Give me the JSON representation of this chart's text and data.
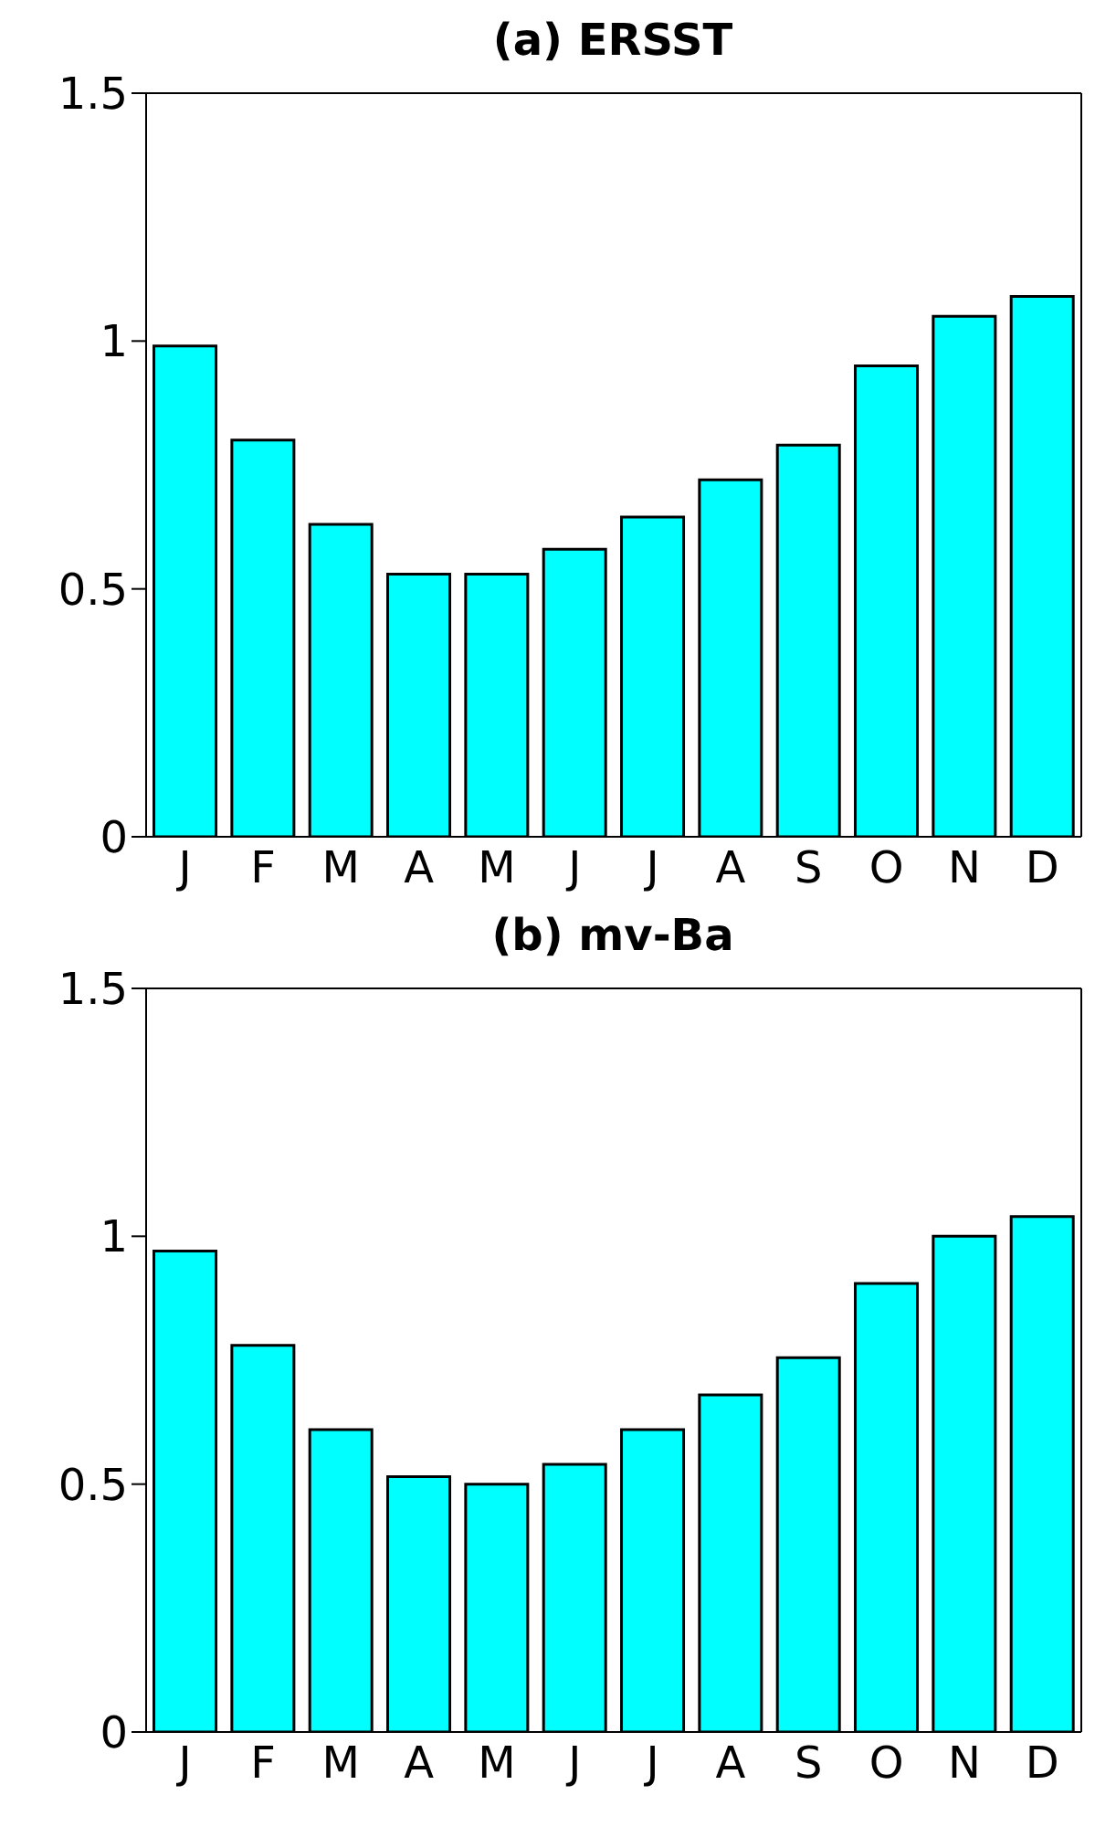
{
  "chart_data": [
    {
      "type": "bar",
      "title": "(a) ERSST",
      "categories": [
        "J",
        "F",
        "M",
        "A",
        "M",
        "J",
        "J",
        "A",
        "S",
        "O",
        "N",
        "D"
      ],
      "values": [
        0.99,
        0.8,
        0.63,
        0.53,
        0.53,
        0.58,
        0.645,
        0.72,
        0.79,
        0.95,
        1.05,
        1.09
      ],
      "color": "#00ffff",
      "ylim": [
        0,
        1.5
      ],
      "yticks": [
        0,
        0.5,
        1,
        1.5
      ],
      "grid": false,
      "legend": false
    },
    {
      "type": "bar",
      "title": "(b) mv-Ba",
      "categories": [
        "J",
        "F",
        "M",
        "A",
        "M",
        "J",
        "J",
        "A",
        "S",
        "O",
        "N",
        "D"
      ],
      "values": [
        0.97,
        0.78,
        0.61,
        0.515,
        0.5,
        0.54,
        0.61,
        0.68,
        0.755,
        0.905,
        1.0,
        1.04
      ],
      "color": "#00ffff",
      "ylim": [
        0,
        1.5
      ],
      "yticks": [
        0,
        0.5,
        1,
        1.5
      ],
      "grid": false,
      "legend": false
    }
  ]
}
